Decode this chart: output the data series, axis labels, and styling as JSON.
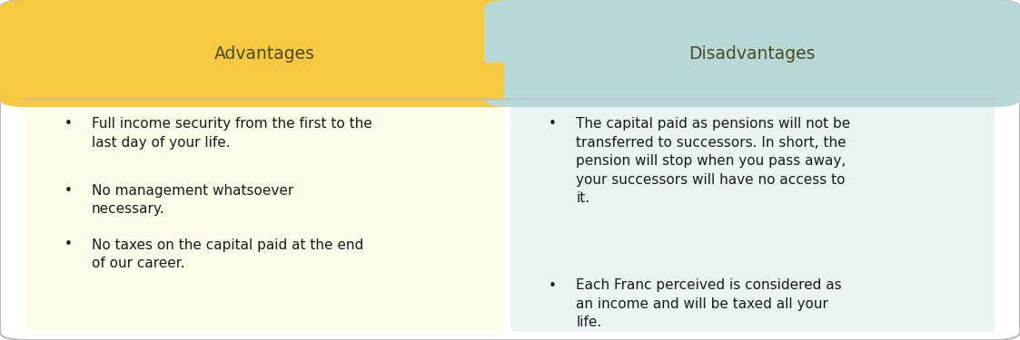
{
  "title_left": "Advantages",
  "title_right": "Disadvantages",
  "header_color_left": "#F7C842",
  "header_color_right": "#B8D8D8",
  "body_color_left": "#FEFBEB",
  "body_color_right": "#EAF4F4",
  "border_color": "#BBBBBB",
  "text_color": "#1a1a1a",
  "header_text_color": "#4a4a20",
  "advantages": [
    "Full income security from the first to the\nlast day of your life.",
    "No management whatsoever\nnecessary.",
    "No taxes on the capital paid at the end\nof our career."
  ],
  "disadvantages": [
    "The capital paid as pensions will not be\ntransferred to successors. In short, the\npension will stop when you pass away,\nyour successors will have no access to\nit.",
    "Each Franc perceived is considered as\nan income and will be taxed all your\nlife."
  ],
  "figsize": [
    11.23,
    3.75
  ],
  "dpi": 100
}
